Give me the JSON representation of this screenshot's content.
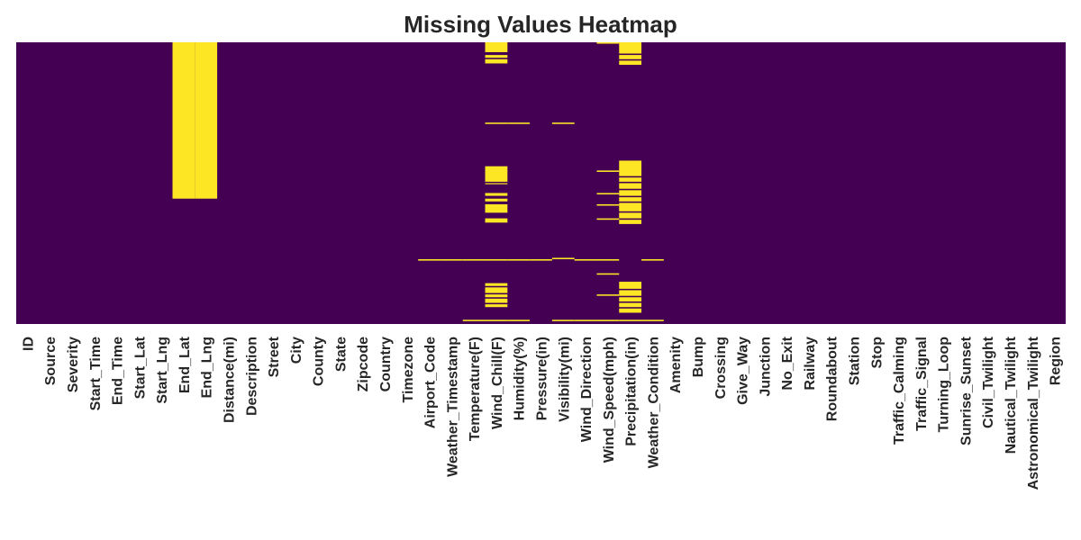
{
  "chart_data": {
    "type": "heatmap",
    "title": "Missing Values Heatmap",
    "columns": [
      "ID",
      "Source",
      "Severity",
      "Start_Time",
      "End_Time",
      "Start_Lat",
      "Start_Lng",
      "End_Lat",
      "End_Lng",
      "Distance(mi)",
      "Description",
      "Street",
      "City",
      "County",
      "State",
      "Zipcode",
      "Country",
      "Timezone",
      "Airport_Code",
      "Weather_Timestamp",
      "Temperature(F)",
      "Wind_Chill(F)",
      "Humidity(%)",
      "Pressure(in)",
      "Visibility(mi)",
      "Wind_Direction",
      "Wind_Speed(mph)",
      "Precipitation(in)",
      "Weather_Condition",
      "Amenity",
      "Bump",
      "Crossing",
      "Give_Way",
      "Junction",
      "No_Exit",
      "Railway",
      "Roundabout",
      "Station",
      "Stop",
      "Traffic_Calming",
      "Traffic_Signal",
      "Turning_Loop",
      "Sunrise_Sunset",
      "Civil_Twilight",
      "Nautical_Twilight",
      "Astronomical_Twilight",
      "Region"
    ],
    "value_colors": {
      "present": "#440154",
      "missing": "#fde725"
    },
    "missing_ranges": {
      "End_Lat": [
        [
          0,
          0.555
        ]
      ],
      "End_Lng": [
        [
          0,
          0.555
        ]
      ],
      "Wind_Chill(F)": [
        [
          0.0,
          0.035
        ],
        [
          0.045,
          0.055
        ],
        [
          0.06,
          0.075
        ],
        [
          0.285,
          0.29
        ],
        [
          0.44,
          0.495
        ],
        [
          0.5,
          0.5
        ],
        [
          0.535,
          0.545
        ],
        [
          0.555,
          0.565
        ],
        [
          0.575,
          0.605
        ],
        [
          0.625,
          0.64
        ],
        [
          0.77,
          0.775
        ],
        [
          0.855,
          0.865
        ],
        [
          0.87,
          0.89
        ],
        [
          0.895,
          0.905
        ],
        [
          0.91,
          0.925
        ],
        [
          0.93,
          0.94
        ],
        [
          0.985,
          0.99
        ]
      ],
      "Precipitation(in)": [
        [
          0.0,
          0.04
        ],
        [
          0.045,
          0.06
        ],
        [
          0.065,
          0.08
        ],
        [
          0.42,
          0.475
        ],
        [
          0.48,
          0.495
        ],
        [
          0.5,
          0.52
        ],
        [
          0.525,
          0.545
        ],
        [
          0.55,
          0.565
        ],
        [
          0.57,
          0.6
        ],
        [
          0.605,
          0.625
        ],
        [
          0.63,
          0.645
        ],
        [
          0.85,
          0.875
        ],
        [
          0.88,
          0.9
        ],
        [
          0.905,
          0.92
        ],
        [
          0.925,
          0.94
        ],
        [
          0.945,
          0.96
        ],
        [
          0.985,
          0.99
        ]
      ],
      "Temperature(F)": [
        [
          0.77,
          0.775
        ],
        [
          0.985,
          0.99
        ]
      ],
      "Humidity(%)": [
        [
          0.285,
          0.29
        ],
        [
          0.77,
          0.775
        ],
        [
          0.985,
          0.99
        ]
      ],
      "Pressure(in)": [
        [
          0.77,
          0.775
        ]
      ],
      "Visibility(mi)": [
        [
          0.285,
          0.29
        ],
        [
          0.765,
          0.77
        ],
        [
          0.985,
          0.99
        ]
      ],
      "Wind_Direction": [
        [
          0.77,
          0.775
        ],
        [
          0.985,
          0.99
        ]
      ],
      "Wind_Speed(mph)": [
        [
          0.0,
          0.005
        ],
        [
          0.455,
          0.46
        ],
        [
          0.535,
          0.54
        ],
        [
          0.575,
          0.58
        ],
        [
          0.625,
          0.63
        ],
        [
          0.77,
          0.775
        ],
        [
          0.82,
          0.825
        ],
        [
          0.895,
          0.9
        ],
        [
          0.985,
          0.99
        ]
      ],
      "Weather_Condition": [
        [
          0.77,
          0.775
        ],
        [
          0.985,
          0.99
        ]
      ],
      "Weather_Timestamp": [
        [
          0.77,
          0.775
        ]
      ],
      "Airport_Code": [
        [
          0.77,
          0.775
        ]
      ]
    }
  }
}
